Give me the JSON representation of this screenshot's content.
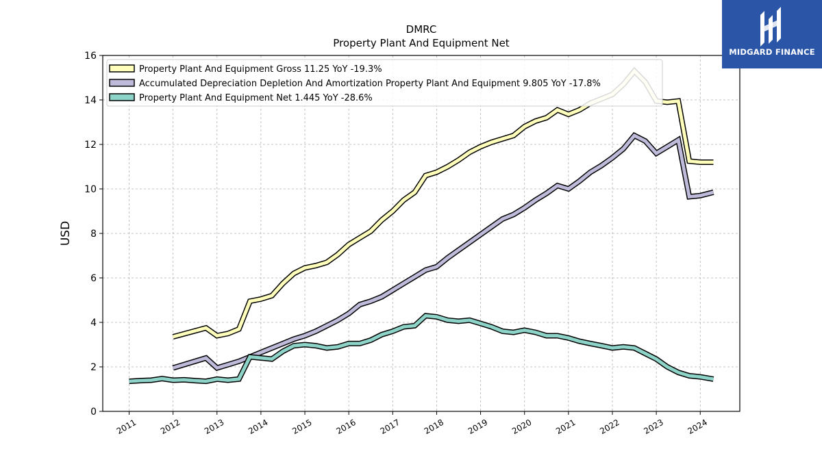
{
  "chart_data": {
    "type": "line",
    "title": "DMRC",
    "subtitle": "Property Plant And Equipment Net",
    "xlabel": "",
    "ylabel": "USD",
    "xlim": [
      2010.4,
      2024.9
    ],
    "ylim": [
      0,
      16
    ],
    "x_ticks": [
      "2011",
      "2012",
      "2013",
      "2014",
      "2015",
      "2016",
      "2017",
      "2018",
      "2019",
      "2020",
      "2021",
      "2022",
      "2023",
      "2024"
    ],
    "y_ticks": [
      "0",
      "2",
      "4",
      "6",
      "8",
      "10",
      "12",
      "14",
      "16"
    ],
    "grid": true,
    "legend_position": "top-left",
    "series": [
      {
        "name": "Property Plant And Equipment Gross  11.25 YoY -19.3%",
        "color": "#ffffbb",
        "points": [
          [
            2012.0,
            3.35
          ],
          [
            2012.75,
            3.75
          ],
          [
            2013.0,
            3.4
          ],
          [
            2013.25,
            3.5
          ],
          [
            2013.5,
            3.7
          ],
          [
            2013.75,
            4.95
          ],
          [
            2014.0,
            5.05
          ],
          [
            2014.25,
            5.2
          ],
          [
            2014.5,
            5.75
          ],
          [
            2014.75,
            6.2
          ],
          [
            2015.0,
            6.45
          ],
          [
            2015.25,
            6.55
          ],
          [
            2015.5,
            6.7
          ],
          [
            2015.75,
            7.05
          ],
          [
            2016.0,
            7.5
          ],
          [
            2016.25,
            7.8
          ],
          [
            2016.5,
            8.1
          ],
          [
            2016.75,
            8.6
          ],
          [
            2017.0,
            9.0
          ],
          [
            2017.25,
            9.5
          ],
          [
            2017.5,
            9.85
          ],
          [
            2017.75,
            10.6
          ],
          [
            2018.0,
            10.75
          ],
          [
            2018.25,
            11.0
          ],
          [
            2018.5,
            11.3
          ],
          [
            2018.75,
            11.65
          ],
          [
            2019.0,
            11.9
          ],
          [
            2019.25,
            12.1
          ],
          [
            2019.5,
            12.25
          ],
          [
            2019.75,
            12.4
          ],
          [
            2020.0,
            12.8
          ],
          [
            2020.25,
            13.05
          ],
          [
            2020.5,
            13.2
          ],
          [
            2020.75,
            13.55
          ],
          [
            2021.0,
            13.35
          ],
          [
            2021.25,
            13.55
          ],
          [
            2021.5,
            13.85
          ],
          [
            2021.75,
            14.05
          ],
          [
            2022.0,
            14.25
          ],
          [
            2022.25,
            14.7
          ],
          [
            2022.5,
            15.3
          ],
          [
            2022.75,
            14.8
          ],
          [
            2023.0,
            13.95
          ],
          [
            2023.25,
            13.9
          ],
          [
            2023.5,
            13.95
          ],
          [
            2023.75,
            11.25
          ],
          [
            2024.0,
            11.2
          ],
          [
            2024.3,
            11.2
          ]
        ]
      },
      {
        "name": "Accumulated Depreciation Depletion And Amortization Property Plant And Equipment  9.805 YoY -17.8%",
        "color": "#bebada",
        "points": [
          [
            2012.0,
            1.95
          ],
          [
            2012.75,
            2.4
          ],
          [
            2013.0,
            1.95
          ],
          [
            2013.25,
            2.1
          ],
          [
            2013.5,
            2.25
          ],
          [
            2013.75,
            2.45
          ],
          [
            2014.0,
            2.65
          ],
          [
            2014.25,
            2.85
          ],
          [
            2014.5,
            3.05
          ],
          [
            2014.75,
            3.25
          ],
          [
            2015.0,
            3.4
          ],
          [
            2015.25,
            3.6
          ],
          [
            2015.5,
            3.85
          ],
          [
            2015.75,
            4.1
          ],
          [
            2016.0,
            4.4
          ],
          [
            2016.25,
            4.8
          ],
          [
            2016.5,
            4.95
          ],
          [
            2016.75,
            5.15
          ],
          [
            2017.0,
            5.45
          ],
          [
            2017.25,
            5.75
          ],
          [
            2017.5,
            6.05
          ],
          [
            2017.75,
            6.35
          ],
          [
            2018.0,
            6.5
          ],
          [
            2018.25,
            6.9
          ],
          [
            2018.5,
            7.25
          ],
          [
            2018.75,
            7.6
          ],
          [
            2019.0,
            7.95
          ],
          [
            2019.25,
            8.3
          ],
          [
            2019.5,
            8.65
          ],
          [
            2019.75,
            8.85
          ],
          [
            2020.0,
            9.15
          ],
          [
            2020.25,
            9.5
          ],
          [
            2020.5,
            9.8
          ],
          [
            2020.75,
            10.15
          ],
          [
            2021.0,
            10.0
          ],
          [
            2021.25,
            10.35
          ],
          [
            2021.5,
            10.75
          ],
          [
            2021.75,
            11.05
          ],
          [
            2022.0,
            11.4
          ],
          [
            2022.25,
            11.8
          ],
          [
            2022.5,
            12.4
          ],
          [
            2022.75,
            12.15
          ],
          [
            2023.0,
            11.6
          ],
          [
            2023.25,
            11.9
          ],
          [
            2023.5,
            12.2
          ],
          [
            2023.75,
            9.65
          ],
          [
            2024.0,
            9.7
          ],
          [
            2024.3,
            9.85
          ]
        ]
      },
      {
        "name": "Property Plant And Equipment Net  1.445 YoY -28.6%",
        "color": "#8dd3c7",
        "points": [
          [
            2011.0,
            1.35
          ],
          [
            2011.25,
            1.38
          ],
          [
            2011.5,
            1.4
          ],
          [
            2011.75,
            1.47
          ],
          [
            2012.0,
            1.4
          ],
          [
            2012.25,
            1.42
          ],
          [
            2012.5,
            1.38
          ],
          [
            2012.75,
            1.35
          ],
          [
            2013.0,
            1.45
          ],
          [
            2013.25,
            1.4
          ],
          [
            2013.5,
            1.45
          ],
          [
            2013.75,
            2.45
          ],
          [
            2014.0,
            2.4
          ],
          [
            2014.25,
            2.35
          ],
          [
            2014.5,
            2.7
          ],
          [
            2014.75,
            2.95
          ],
          [
            2015.0,
            3.0
          ],
          [
            2015.25,
            2.95
          ],
          [
            2015.5,
            2.85
          ],
          [
            2015.75,
            2.9
          ],
          [
            2016.0,
            3.05
          ],
          [
            2016.25,
            3.05
          ],
          [
            2016.5,
            3.2
          ],
          [
            2016.75,
            3.45
          ],
          [
            2017.0,
            3.6
          ],
          [
            2017.25,
            3.8
          ],
          [
            2017.5,
            3.85
          ],
          [
            2017.75,
            4.3
          ],
          [
            2018.0,
            4.25
          ],
          [
            2018.25,
            4.1
          ],
          [
            2018.5,
            4.05
          ],
          [
            2018.75,
            4.1
          ],
          [
            2019.0,
            3.95
          ],
          [
            2019.25,
            3.8
          ],
          [
            2019.5,
            3.6
          ],
          [
            2019.75,
            3.55
          ],
          [
            2020.0,
            3.65
          ],
          [
            2020.25,
            3.55
          ],
          [
            2020.5,
            3.4
          ],
          [
            2020.75,
            3.4
          ],
          [
            2021.0,
            3.3
          ],
          [
            2021.25,
            3.15
          ],
          [
            2021.5,
            3.05
          ],
          [
            2021.75,
            2.95
          ],
          [
            2022.0,
            2.85
          ],
          [
            2022.25,
            2.9
          ],
          [
            2022.5,
            2.85
          ],
          [
            2022.75,
            2.6
          ],
          [
            2023.0,
            2.35
          ],
          [
            2023.25,
            2.0
          ],
          [
            2023.5,
            1.75
          ],
          [
            2023.75,
            1.6
          ],
          [
            2024.0,
            1.55
          ],
          [
            2024.3,
            1.45
          ]
        ]
      }
    ]
  },
  "logo": {
    "text": "MIDGARD FINANCE",
    "background": "#2b56a8"
  }
}
